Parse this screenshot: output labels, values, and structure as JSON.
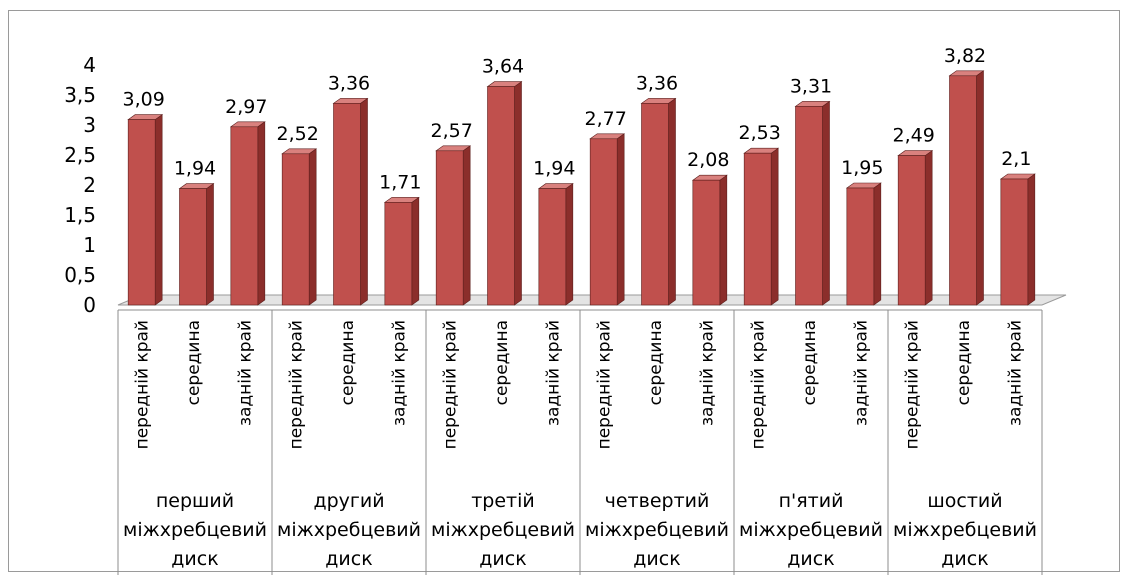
{
  "chart_data": {
    "type": "bar",
    "title": "",
    "xlabel": "",
    "ylabel": "",
    "ylim": [
      0,
      4
    ],
    "yticks": [
      "0",
      "0,5",
      "1",
      "1,5",
      "2",
      "2,5",
      "3",
      "3,5",
      "4"
    ],
    "ytick_values": [
      0,
      0.5,
      1,
      1.5,
      2,
      2.5,
      3,
      3.5,
      4
    ],
    "grid": false,
    "legend": "none",
    "bar_color": "#c0504d",
    "bar_side_color": "#8b2e2b",
    "bar_top_color": "#d9817e",
    "groups": [
      {
        "label": "перший міжхребцевий диск",
        "lines": [
          "перший",
          "міжхребцевий",
          "диск"
        ],
        "categories": [
          "передній край",
          "середина",
          "задній край"
        ],
        "values": [
          3.09,
          1.94,
          2.97
        ],
        "value_labels": [
          "3,09",
          "1,94",
          "2,97"
        ]
      },
      {
        "label": "другий міжхребцевий диск",
        "lines": [
          "другий",
          "міжхребцевий",
          "диск"
        ],
        "categories": [
          "передній край",
          "середина",
          "задній край"
        ],
        "values": [
          2.52,
          3.36,
          1.71
        ],
        "value_labels": [
          "2,52",
          "3,36",
          "1,71"
        ]
      },
      {
        "label": "третій міжхребцевий диск",
        "lines": [
          "третій",
          "міжхребцевий",
          "диск"
        ],
        "categories": [
          "передній край",
          "середина",
          "задній край"
        ],
        "values": [
          2.57,
          3.64,
          1.94
        ],
        "value_labels": [
          "2,57",
          "3,64",
          "1,94"
        ]
      },
      {
        "label": "четвертий міжхребцевий диск",
        "lines": [
          "четвертий",
          "міжхребцевий",
          "диск"
        ],
        "categories": [
          "передній край",
          "середина",
          "задній край"
        ],
        "values": [
          2.77,
          3.36,
          2.08
        ],
        "value_labels": [
          "2,77",
          "3,36",
          "2,08"
        ]
      },
      {
        "label": "п'ятий міжхребцевий диск",
        "lines": [
          "п'ятий",
          "міжхребцевий",
          "диск"
        ],
        "categories": [
          "передній край",
          "середина",
          "задній край"
        ],
        "values": [
          2.53,
          3.31,
          1.95
        ],
        "value_labels": [
          "2,53",
          "3,31",
          "1,95"
        ]
      },
      {
        "label": "шостий міжхребцевий диск",
        "lines": [
          "шостий",
          "міжхребцевий",
          "диск"
        ],
        "categories": [
          "передній край",
          "середина",
          "задній край"
        ],
        "values": [
          2.49,
          3.82,
          2.1
        ],
        "value_labels": [
          "2,49",
          "3,82",
          "2,1"
        ]
      }
    ]
  }
}
